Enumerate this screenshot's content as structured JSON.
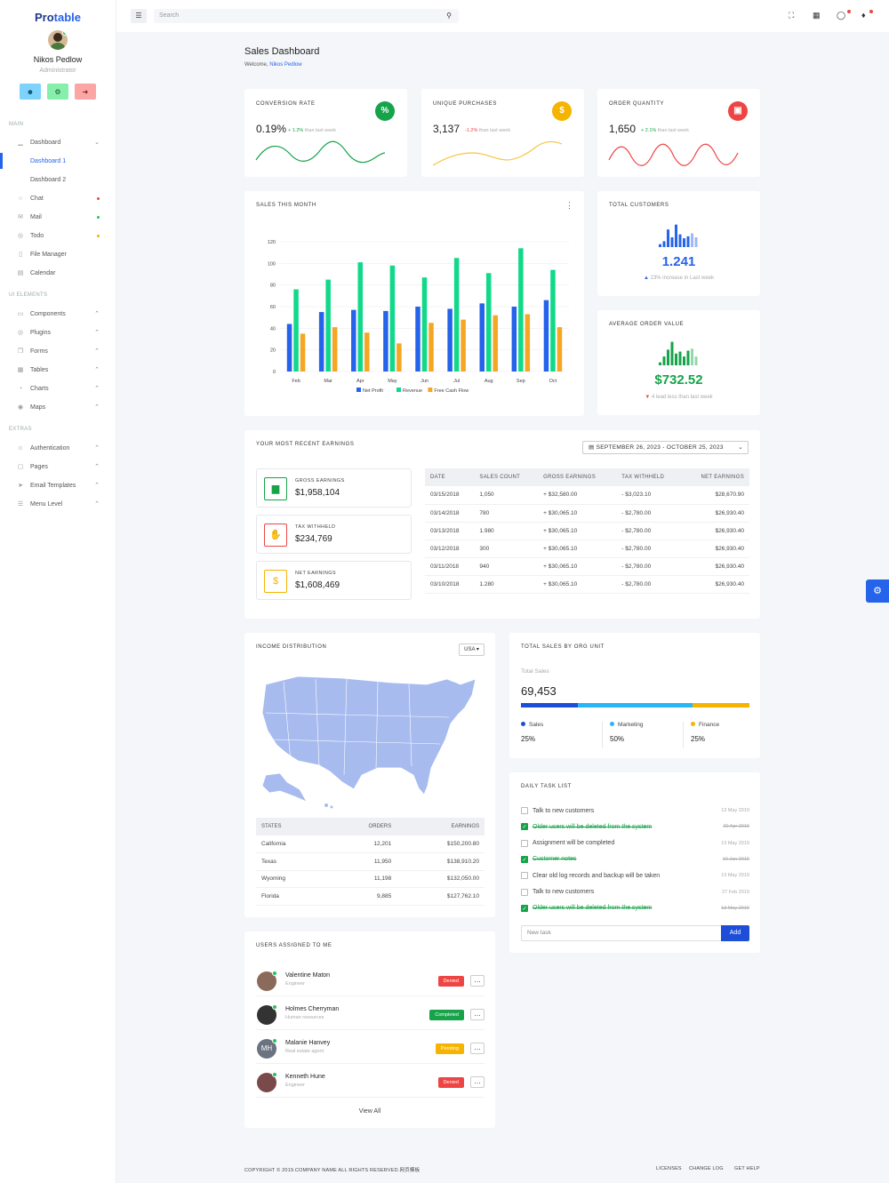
{
  "brand": {
    "part1": "Pro",
    "part2": "table"
  },
  "user": {
    "name": "Nikos Pedlow",
    "role": "Administrator"
  },
  "sidebar": {
    "sections": [
      "MAIN",
      "UI ELEMENTS",
      "EXTRAS"
    ],
    "items": [
      {
        "label": "Dashboard",
        "icon": "chart-icon"
      },
      {
        "label": "Dashboard 1"
      },
      {
        "label": "Dashboard 2"
      },
      {
        "label": "Chat",
        "icon": "chat-icon"
      },
      {
        "label": "Mail",
        "icon": "mail-icon"
      },
      {
        "label": "Todo",
        "icon": "todo-icon"
      },
      {
        "label": "File Manager",
        "icon": "file-icon"
      },
      {
        "label": "Calendar",
        "icon": "calendar-icon"
      },
      {
        "label": "Components",
        "icon": "monitor-icon"
      },
      {
        "label": "Plugins",
        "icon": "globe-icon"
      },
      {
        "label": "Forms",
        "icon": "forms-icon"
      },
      {
        "label": "Tables",
        "icon": "table-icon"
      },
      {
        "label": "Charts",
        "icon": "pie-icon"
      },
      {
        "label": "Maps",
        "icon": "pin-icon"
      },
      {
        "label": "Authentication",
        "icon": "user-icon"
      },
      {
        "label": "Pages",
        "icon": "page-icon"
      },
      {
        "label": "Email Templates",
        "icon": "send-icon"
      },
      {
        "label": "Menu Level",
        "icon": "menu-icon"
      }
    ]
  },
  "header": {
    "search_placeholder": "Search"
  },
  "page": {
    "title": "Sales Dashboard",
    "welcome": "Welcome,",
    "welcome_name": "Nikos Pedlow"
  },
  "kpis": [
    {
      "title": "CONVERSION RATE",
      "value": "0.19%",
      "change": "+ 1.2%",
      "suffix": "than last week",
      "icon": "%",
      "color": "#16a34a",
      "spark_color": "#16a34a"
    },
    {
      "title": "UNIQUE PURCHASES",
      "value": "3,137",
      "change": "-1.2%",
      "suffix": "than last week",
      "icon": "$",
      "color": "#f5b400",
      "spark_color": "#f5c542"
    },
    {
      "title": "ORDER QUANTITY",
      "value": "1,650",
      "change": "+ 2.1%",
      "suffix": "than last week",
      "icon": "▣",
      "color": "#ef4444",
      "spark_color": "#ef4444"
    }
  ],
  "sales_month": {
    "title": "SALES THIS MONTH"
  },
  "chart_data": {
    "type": "bar",
    "categories": [
      "Feb",
      "Mar",
      "Apr",
      "May",
      "Jun",
      "Jul",
      "Aug",
      "Sep",
      "Oct"
    ],
    "ylim": [
      0,
      120
    ],
    "yticks": [
      0,
      20,
      40,
      60,
      80,
      100,
      120
    ],
    "series": [
      {
        "name": "Net Profit",
        "color": "#2563eb",
        "values": [
          44,
          55,
          57,
          56,
          60,
          58,
          63,
          60,
          66
        ]
      },
      {
        "name": "Revenue",
        "color": "#10d98a",
        "values": [
          76,
          85,
          101,
          98,
          87,
          105,
          91,
          114,
          94
        ]
      },
      {
        "name": "Free Cash Flow",
        "color": "#f5a623",
        "values": [
          35,
          41,
          36,
          26,
          45,
          48,
          52,
          53,
          41
        ]
      }
    ]
  },
  "total_customers": {
    "title": "TOTAL CUSTOMERS",
    "value": "1.241",
    "note": "23% increase in Last week",
    "bars": [
      3,
      6,
      18,
      10,
      23,
      13,
      9,
      11,
      14,
      10
    ],
    "bar_color": "#2563eb"
  },
  "avg_order": {
    "title": "AVERAGE ORDER VALUE",
    "value": "$732.52",
    "note": "4 lead less than last week",
    "bars": [
      3,
      9,
      16,
      24,
      12,
      14,
      9,
      15,
      17,
      9
    ],
    "bar_color": "#16a34a"
  },
  "earnings": {
    "title": "YOUR MOST RECENT EARNINGS",
    "date_range": "SEPTEMBER 26, 2023 - OCTOBER 25, 2023",
    "boxes": [
      {
        "label": "GROSS EARNINGS",
        "value": "$1,958,104",
        "icon": "▆",
        "color": "#16a34a"
      },
      {
        "label": "TAX WITHHELD",
        "value": "$234,769",
        "icon": "✋",
        "color": "#ef4444"
      },
      {
        "label": "NET EARNINGS",
        "value": "$1,608,469",
        "icon": "$",
        "color": "#f5b400"
      }
    ],
    "columns": [
      "DATE",
      "SALES COUNT",
      "GROSS EARNINGS",
      "TAX WITHHELD",
      "NET EARNINGS"
    ],
    "rows": [
      [
        "03/15/2018",
        "1,050",
        "+ $32,580.00",
        "- $3,023.10",
        "$28,670.90"
      ],
      [
        "03/14/2018",
        "780",
        "+ $30,065.10",
        "- $2,780.00",
        "$26,930.40"
      ],
      [
        "03/13/2018",
        "1.980",
        "+ $30,065.10",
        "- $2,780.00",
        "$26,930.40"
      ],
      [
        "03/12/2018",
        "300",
        "+ $30,065.10",
        "- $2,780.00",
        "$26,930.40"
      ],
      [
        "03/11/2018",
        "940",
        "+ $30,065.10",
        "- $2,780.00",
        "$26,930.40"
      ],
      [
        "03/10/2018",
        "1.280",
        "+ $30,065.10",
        "- $2,780.00",
        "$26,930.40"
      ]
    ]
  },
  "income": {
    "title": "INCOME DISTRIBUTION",
    "region": "USA",
    "columns": [
      "STATES",
      "ORDERS",
      "EARNINGS"
    ],
    "rows": [
      [
        "California",
        "12,201",
        "$150,200.80"
      ],
      [
        "Texas",
        "11,950",
        "$138,910.20"
      ],
      [
        "Wyoming",
        "11,198",
        "$132,050.00"
      ],
      [
        "Florida",
        "9,885",
        "$127,762.10"
      ]
    ]
  },
  "org_sales": {
    "title": "TOTAL SALES BY ORG UNIT",
    "subtitle": "Total Sales",
    "value": "69,453",
    "units": [
      {
        "name": "Sales",
        "pct": "25%",
        "share": 0.25,
        "color": "#1d4ed8"
      },
      {
        "name": "Marketing",
        "pct": "50%",
        "share": 0.5,
        "color": "#29b6f6"
      },
      {
        "name": "Finance",
        "pct": "25%",
        "share": 0.25,
        "color": "#f5b400"
      }
    ]
  },
  "tasks": {
    "title": "DAILY TASK LIST",
    "items": [
      {
        "text": "Talk to new customers",
        "date": "13 May 2019",
        "done": false
      },
      {
        "text": "Older users will be deleted from the system",
        "date": "20 Apr 2019",
        "done": true
      },
      {
        "text": "Assignment will be completed",
        "date": "13 May 2019",
        "done": false
      },
      {
        "text": "Customer notes",
        "date": "10 Jan 2019",
        "done": true
      },
      {
        "text": "Clear old log records and backup will be taken",
        "date": "13 May 2019",
        "done": false
      },
      {
        "text": "Talk to new customers",
        "date": "27 Feb 2019",
        "done": false
      },
      {
        "text": "Older users will be deleted from the system",
        "date": "13 May 2019",
        "done": true
      }
    ],
    "input_placeholder": "New task",
    "add_label": "Add"
  },
  "users": {
    "title": "USERS ASSIGNED TO ME",
    "items": [
      {
        "name": "Valentine Maton",
        "role": "Engineer",
        "status": "Denied",
        "color": "#ef4444",
        "av": "#8a6a5a"
      },
      {
        "name": "Holmes Cherryman",
        "role": "Human resources",
        "status": "Completed",
        "color": "#16a34a",
        "av": "#333333"
      },
      {
        "name": "Malanie Hanvey",
        "role": "Real estate agent",
        "status": "Pending",
        "color": "#f5b400",
        "av": "#6b7280",
        "initials": "MH"
      },
      {
        "name": "Kenneth Hune",
        "role": "Engineer",
        "status": "Denied",
        "color": "#ef4444",
        "av": "#7a4a4a"
      }
    ],
    "view_all": "View All"
  },
  "footer": {
    "copyright": "COPYRIGHT © 2019.COMPANY NAME ALL RIGHTS RESERVED.网页模板",
    "links": [
      "LICENSES",
      "CHANGE LOG",
      "GET HELP"
    ]
  }
}
